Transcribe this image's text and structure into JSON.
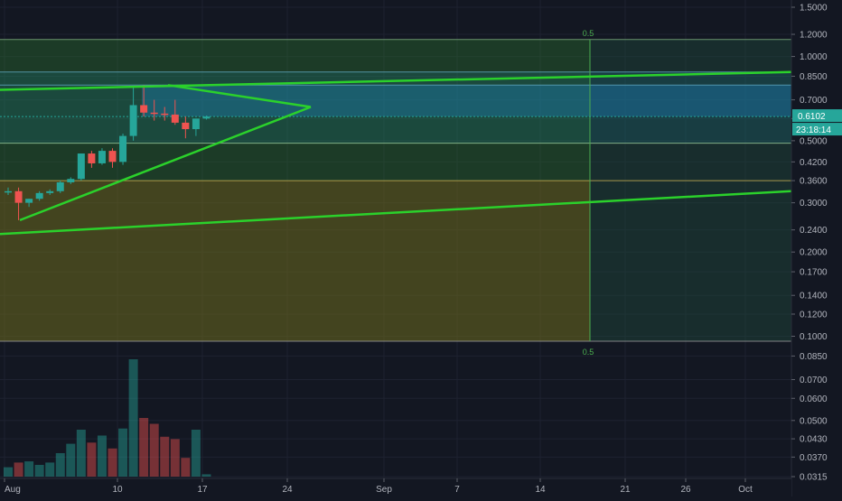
{
  "colors": {
    "background": "#131722",
    "grid": "#1e2230",
    "axis_text": "#b2b5be",
    "up": "#26a69a",
    "down": "#ef5350",
    "trendline": "#2bd12b",
    "fib_label": "#4caf50",
    "price_badge": "#26a69a",
    "zone_green": "#2e7d32",
    "zone_olive": "#6b6a1d",
    "zone_teal": "#1e88a8"
  },
  "chart_data": {
    "type": "candlestick",
    "y_scale": "log",
    "price_axis_ticks": [
      "1.5000",
      "1.2000",
      "1.0000",
      "0.8500",
      "0.7000",
      "0.6000",
      "0.5000",
      "0.4200",
      "0.3600",
      "0.3000",
      "0.2400",
      "0.2000",
      "0.1700",
      "0.1400",
      "0.1200",
      "0.1000",
      "0.0850",
      "0.0700",
      "0.0600",
      "0.0500",
      "0.0430",
      "0.0370",
      "0.0315"
    ],
    "time_axis_labels": [
      "Aug",
      "10",
      "17",
      "24",
      "Sep",
      "7",
      "14",
      "21",
      "26",
      "Oct"
    ],
    "current_price": "0.6102",
    "countdown": "23:18:14",
    "fib_vertical_labels": [
      "0.5",
      "0.5"
    ],
    "candles": [
      {
        "date": "Aug 1",
        "open": 0.33,
        "high": 0.34,
        "low": 0.32,
        "close": 0.33
      },
      {
        "date": "Aug 2",
        "open": 0.33,
        "high": 0.34,
        "low": 0.26,
        "close": 0.3
      },
      {
        "date": "Aug 3",
        "open": 0.3,
        "high": 0.31,
        "low": 0.29,
        "close": 0.31
      },
      {
        "date": "Aug 4",
        "open": 0.31,
        "high": 0.33,
        "low": 0.305,
        "close": 0.325
      },
      {
        "date": "Aug 5",
        "open": 0.325,
        "high": 0.335,
        "low": 0.32,
        "close": 0.33
      },
      {
        "date": "Aug 6",
        "open": 0.33,
        "high": 0.36,
        "low": 0.325,
        "close": 0.355
      },
      {
        "date": "Aug 7",
        "open": 0.355,
        "high": 0.37,
        "low": 0.35,
        "close": 0.365
      },
      {
        "date": "Aug 8",
        "open": 0.365,
        "high": 0.45,
        "low": 0.36,
        "close": 0.45
      },
      {
        "date": "Aug 9",
        "open": 0.45,
        "high": 0.46,
        "low": 0.4,
        "close": 0.415
      },
      {
        "date": "Aug 10",
        "open": 0.415,
        "high": 0.47,
        "low": 0.41,
        "close": 0.46
      },
      {
        "date": "Aug 11",
        "open": 0.46,
        "high": 0.47,
        "low": 0.4,
        "close": 0.42
      },
      {
        "date": "Aug 12",
        "open": 0.42,
        "high": 0.53,
        "low": 0.41,
        "close": 0.52
      },
      {
        "date": "Aug 13",
        "open": 0.52,
        "high": 0.78,
        "low": 0.5,
        "close": 0.67
      },
      {
        "date": "Aug 14",
        "open": 0.67,
        "high": 0.79,
        "low": 0.61,
        "close": 0.63
      },
      {
        "date": "Aug 15",
        "open": 0.63,
        "high": 0.7,
        "low": 0.59,
        "close": 0.625
      },
      {
        "date": "Aug 16",
        "open": 0.625,
        "high": 0.66,
        "low": 0.59,
        "close": 0.62
      },
      {
        "date": "Aug 17",
        "open": 0.62,
        "high": 0.7,
        "low": 0.57,
        "close": 0.58
      },
      {
        "date": "Aug 18",
        "open": 0.58,
        "high": 0.61,
        "low": 0.51,
        "close": 0.55
      },
      {
        "date": "Aug 19",
        "open": 0.55,
        "high": 0.6,
        "low": 0.52,
        "close": 0.6
      },
      {
        "date": "Aug 20",
        "open": 0.6,
        "high": 0.615,
        "low": 0.595,
        "close": 0.61
      }
    ],
    "volume": [
      0.08,
      0.12,
      0.13,
      0.1,
      0.12,
      0.2,
      0.28,
      0.4,
      0.29,
      0.35,
      0.24,
      0.41,
      1.0,
      0.5,
      0.45,
      0.34,
      0.32,
      0.16,
      0.4,
      0.02
    ],
    "zones": [
      {
        "name": "green-zone",
        "from": 0.36,
        "to": 1.15
      },
      {
        "name": "olive-zone",
        "from": 0.096,
        "to": 0.36
      },
      {
        "name": "teal-zone",
        "from": 0.49,
        "to": 1.15
      }
    ]
  }
}
